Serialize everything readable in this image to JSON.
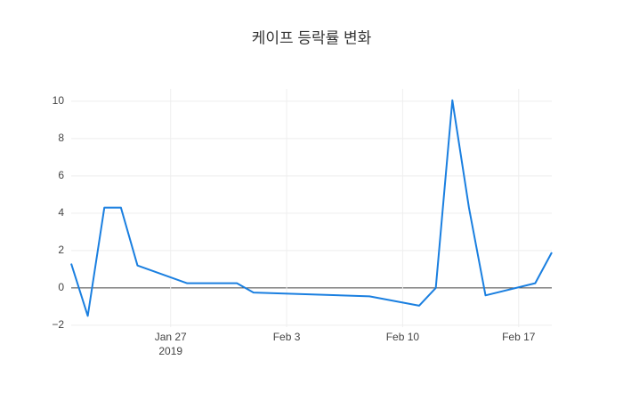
{
  "chart_data": {
    "type": "line",
    "title": "케이프 등락률 변화",
    "x": [
      "2019-01-21",
      "2019-01-22",
      "2019-01-23",
      "2019-01-24",
      "2019-01-25",
      "2019-01-28",
      "2019-01-31",
      "2019-02-01",
      "2019-02-08",
      "2019-02-11",
      "2019-02-12",
      "2019-02-13",
      "2019-02-14",
      "2019-02-15",
      "2019-02-18",
      "2019-02-19"
    ],
    "series": [
      {
        "color": "#1a7fe0",
        "values": [
          1.3,
          -1.5,
          4.3,
          4.3,
          1.2,
          0.25,
          0.25,
          -0.25,
          -0.45,
          -0.95,
          0,
          10.05,
          4.3,
          -0.4,
          0.25,
          1.9
        ]
      }
    ],
    "xlim": [
      "2019-01-21",
      "2019-02-19"
    ],
    "xticks": [
      {
        "value": "2019-01-27",
        "label": "Jan 27"
      },
      {
        "value": "2019-02-03",
        "label": "Feb 3"
      },
      {
        "value": "2019-02-10",
        "label": "Feb 10"
      },
      {
        "value": "2019-02-17",
        "label": "Feb 17"
      }
    ],
    "x_year_label": "2019",
    "ylim": [
      -2.1,
      10.66
    ],
    "yticks": [
      {
        "value": -2,
        "label": "−2"
      },
      0,
      2,
      4,
      6,
      8,
      10
    ],
    "grid": true,
    "zeroline": true
  }
}
